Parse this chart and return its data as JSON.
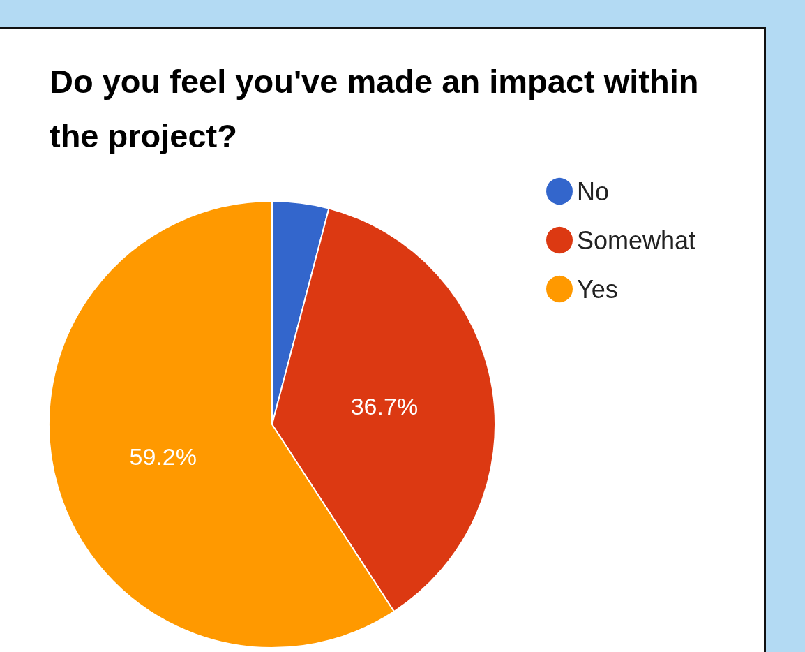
{
  "chart_data": {
    "type": "pie",
    "title": "Do you feel you've made an impact within the project?",
    "categories": [
      "No",
      "Somewhat",
      "Yes"
    ],
    "values": [
      4.1,
      36.7,
      59.2
    ],
    "colors": [
      "#3366cc",
      "#dc3912",
      "#ff9900"
    ],
    "value_labels": [
      null,
      "36.7%",
      "59.2%"
    ],
    "legend": "top right"
  }
}
